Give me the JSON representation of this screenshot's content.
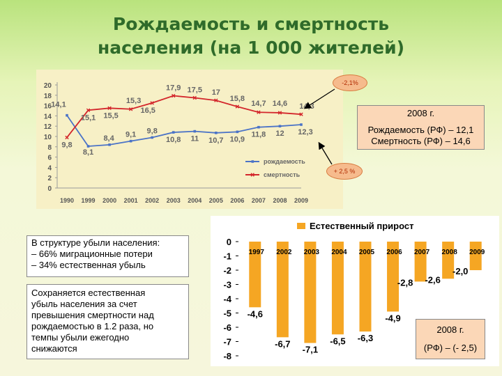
{
  "title": {
    "line1": "Рождаемость и смертность",
    "line2": "населения (на 1 000 жителей)"
  },
  "colors": {
    "birth": "#4b73c7",
    "death": "#d3262b",
    "natural": "#f5a623",
    "title": "#2f6b2a"
  },
  "chart_data": [
    {
      "type": "line",
      "x": [
        "1990",
        "1999",
        "2000",
        "2001",
        "2002",
        "2003",
        "2004",
        "2005",
        "2006",
        "2007",
        "2008",
        "2009"
      ],
      "ylim": [
        0,
        20
      ],
      "yticks": [
        "0",
        "2",
        "4",
        "6",
        "8",
        "10",
        "12",
        "14",
        "16",
        "18",
        "20"
      ],
      "grid": false,
      "legend": "bottom-right",
      "series": [
        {
          "name": "рождаемость",
          "values": [
            14.1,
            8.1,
            8.4,
            9.1,
            9.8,
            10.8,
            11,
            10.7,
            10.9,
            11.8,
            12,
            12.3
          ],
          "labels": [
            "14,1",
            "8,1",
            "8,4",
            "9,1",
            "9,8",
            "10,8",
            "11",
            "10,7",
            "10,9",
            "11,8",
            "12",
            "12,3"
          ]
        },
        {
          "name": "смертность",
          "values": [
            9.8,
            15.1,
            15.5,
            15.3,
            16.5,
            17.9,
            17.5,
            17,
            15.8,
            14.7,
            14.6,
            14.3
          ],
          "labels": [
            "9,8",
            "15,1",
            "15,5",
            "15,3",
            "16,5",
            "17,9",
            "17,5",
            "17",
            "15,8",
            "14,7",
            "14,6",
            "14,3"
          ]
        }
      ]
    },
    {
      "type": "bar",
      "legend_label": "Естественный прирост",
      "categories": [
        "1997",
        "2002",
        "2003",
        "2004",
        "2005",
        "2006",
        "2007",
        "2008",
        "2009"
      ],
      "values": [
        -4.6,
        -6.7,
        -7.1,
        -6.5,
        -6.3,
        -4.9,
        -2.8,
        -2.6,
        -2.0
      ],
      "labels": [
        "-4,6",
        "-6,7",
        "-7,1",
        "-6,5",
        "-6,3",
        "-4,9",
        "-2,8",
        "-2,6",
        "-2,0"
      ],
      "ylim": [
        -8,
        0
      ],
      "yticks": [
        "0",
        "-1",
        "-2",
        "-3",
        "-4",
        "-5",
        "-6",
        "-7",
        "-8"
      ]
    }
  ],
  "callouts": {
    "death_change": "-2,1%",
    "birth_change": "+ 2,5 %"
  },
  "box_2008": {
    "year": "2008 г.",
    "birth": "Рождаемость (РФ) – 12,1",
    "death": "Смертность (РФ) – 14,6"
  },
  "structure": {
    "line1": "В структуре убыли населения:",
    "line2": " – 66% миграционные потери",
    "line3": " – 34% естественная убыль"
  },
  "note": {
    "line1": "Сохраняется естественная",
    "line2": "убыль населения за счет",
    "line3": "превышения смертности над",
    "line4": "рождаемостью в 1.2 раза, но",
    "line5": "темпы убыли ежегодно",
    "line6": "снижаются"
  },
  "natural_2008": {
    "year": "2008 г.",
    "value": "(РФ) – (- 2,5)"
  }
}
